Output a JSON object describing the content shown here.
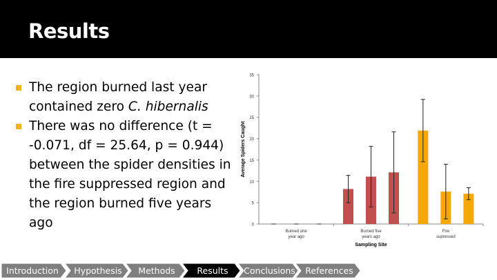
{
  "slide": {
    "title": "Results"
  },
  "bullets": [
    {
      "segments": [
        {
          "text": "The region burned last year contained zero "
        },
        {
          "text": "C. hibernalis",
          "italic": true
        }
      ]
    },
    {
      "segments": [
        {
          "text": "There was no difference (t = -0.071, df = 25.64, p = 0.944) between the spider densities in the fire suppressed region and the region burned five years ago"
        }
      ]
    }
  ],
  "nav": {
    "items": [
      "Introduction",
      "Hypothesis",
      "Methods",
      "Results",
      "Conclusions",
      "References"
    ],
    "active": "Results",
    "colors": {
      "inactive": "#7f7f7f",
      "active": "#000000",
      "text": "#ffffff"
    }
  },
  "chart_data": {
    "type": "bar",
    "xlabel": "Sampling Site",
    "ylabel": "Average Spiders Caught",
    "ylim": [
      0,
      35
    ],
    "yticks": [
      0,
      5,
      10,
      15,
      20,
      25,
      30,
      35
    ],
    "grid": false,
    "groups": [
      {
        "label": [
          "Burned one",
          "year ago"
        ],
        "color": "#c0504d",
        "values": [
          0,
          0,
          0
        ],
        "errors": [
          0,
          0,
          0
        ]
      },
      {
        "label": [
          "Burned five",
          "years ago"
        ],
        "color": "#c0504d",
        "values": [
          8.2,
          11.1,
          12.1
        ],
        "errors": [
          3.2,
          7.1,
          9.5
        ]
      },
      {
        "label": [
          "Fire",
          "supressed"
        ],
        "color": "#f5a80a",
        "values": [
          21.9,
          7.6,
          7.1
        ],
        "errors": [
          7.3,
          6.4,
          1.4
        ]
      }
    ]
  }
}
